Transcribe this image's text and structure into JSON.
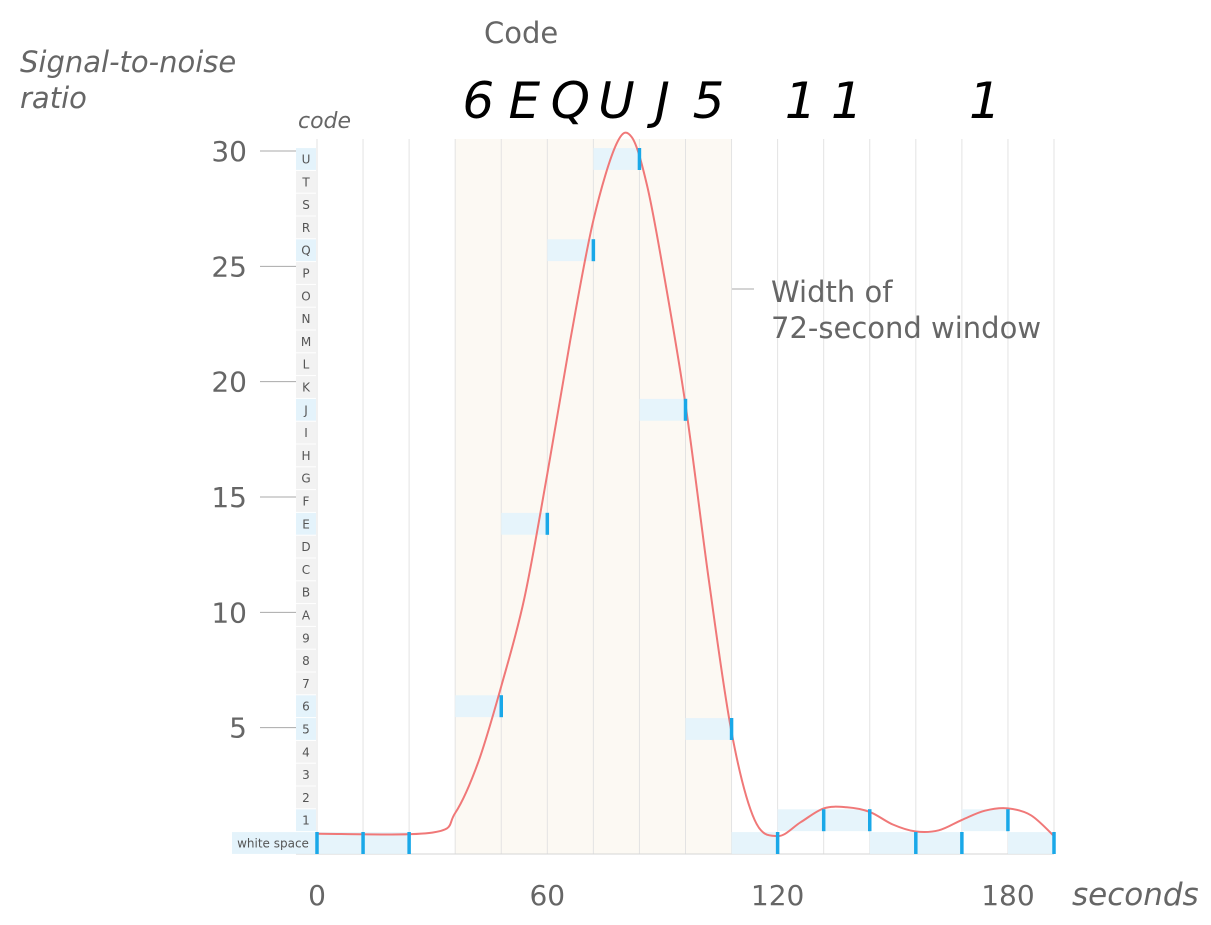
{
  "chart_data": {
    "type": "line",
    "title": "Code",
    "code_sequence": [
      "6",
      "E",
      "Q",
      "U",
      "J",
      "5",
      "",
      "1",
      "1",
      "",
      "",
      "1",
      ""
    ],
    "ylabel": "Signal-to-noise ratio",
    "ylabel_line1": "Signal-to-noise",
    "ylabel_line2": "ratio",
    "xlabel": "seconds",
    "code_axis_label": "code",
    "x_ticks": [
      0,
      60,
      120,
      180
    ],
    "y_ticks": [
      5,
      10,
      15,
      20,
      25,
      30
    ],
    "xlim": [
      0,
      192
    ],
    "ylim": [
      0,
      31
    ],
    "annotation_line1": "Width of",
    "annotation_line2": "72-second window",
    "highlight_window": [
      36,
      108
    ],
    "code_levels": [
      "white space",
      "1",
      "2",
      "3",
      "4",
      "5",
      "6",
      "7",
      "8",
      "9",
      "A",
      "B",
      "C",
      "D",
      "E",
      "F",
      "G",
      "H",
      "I",
      "J",
      "K",
      "L",
      "M",
      "N",
      "O",
      "P",
      "Q",
      "R",
      "S",
      "T",
      "U"
    ],
    "symbol_interval_seconds": 12,
    "samples": [
      {
        "t": 0,
        "snr": 0.4,
        "code": "white space"
      },
      {
        "t": 12,
        "snr": 0.4,
        "code": "white space"
      },
      {
        "t": 24,
        "snr": 0.4,
        "code": "white space"
      },
      {
        "t": 48,
        "snr": 6.6,
        "code": "6"
      },
      {
        "t": 60,
        "snr": 14.6,
        "code": "E"
      },
      {
        "t": 72,
        "snr": 26.6,
        "code": "Q"
      },
      {
        "t": 84,
        "snr": 30.5,
        "code": "U"
      },
      {
        "t": 96,
        "snr": 19.5,
        "code": "J"
      },
      {
        "t": 108,
        "snr": 5.5,
        "code": "5"
      },
      {
        "t": 120,
        "snr": 0.4,
        "code": "white space"
      },
      {
        "t": 132,
        "snr": 1.5,
        "code": "1"
      },
      {
        "t": 144,
        "snr": 1.5,
        "code": "1"
      },
      {
        "t": 156,
        "snr": 0.5,
        "code": "white space"
      },
      {
        "t": 168,
        "snr": 0.5,
        "code": "white space"
      },
      {
        "t": 180,
        "snr": 1.5,
        "code": "1"
      },
      {
        "t": 192,
        "snr": 0.4,
        "code": "white space"
      }
    ],
    "curve": {
      "x": [
        0,
        30,
        36,
        42,
        48,
        54,
        60,
        66,
        72,
        78,
        82,
        86,
        90,
        96,
        102,
        108,
        114,
        120,
        126,
        132,
        138,
        144,
        150,
        156,
        162,
        168,
        174,
        180,
        186,
        192
      ],
      "y": [
        0.4,
        0.45,
        1.3,
        3.5,
        6.8,
        10.6,
        16.0,
        21.8,
        27.0,
        30.3,
        30.6,
        28.5,
        25.0,
        19.0,
        11.5,
        4.8,
        1.0,
        0.3,
        0.9,
        1.5,
        1.55,
        1.35,
        0.8,
        0.5,
        0.55,
        1.0,
        1.4,
        1.5,
        1.2,
        0.3
      ]
    },
    "grid": true,
    "colors": {
      "curve": "#f07878",
      "sample_tick": "#1aa8e8",
      "sample_bar": "#e6f4fb",
      "window": "#fcf9f3",
      "gridline": "#e3e3e3",
      "text": "#666666",
      "code_text": "#000000",
      "code_column": "#f2f2f2",
      "code_column_active": "#e4f3fb"
    }
  }
}
